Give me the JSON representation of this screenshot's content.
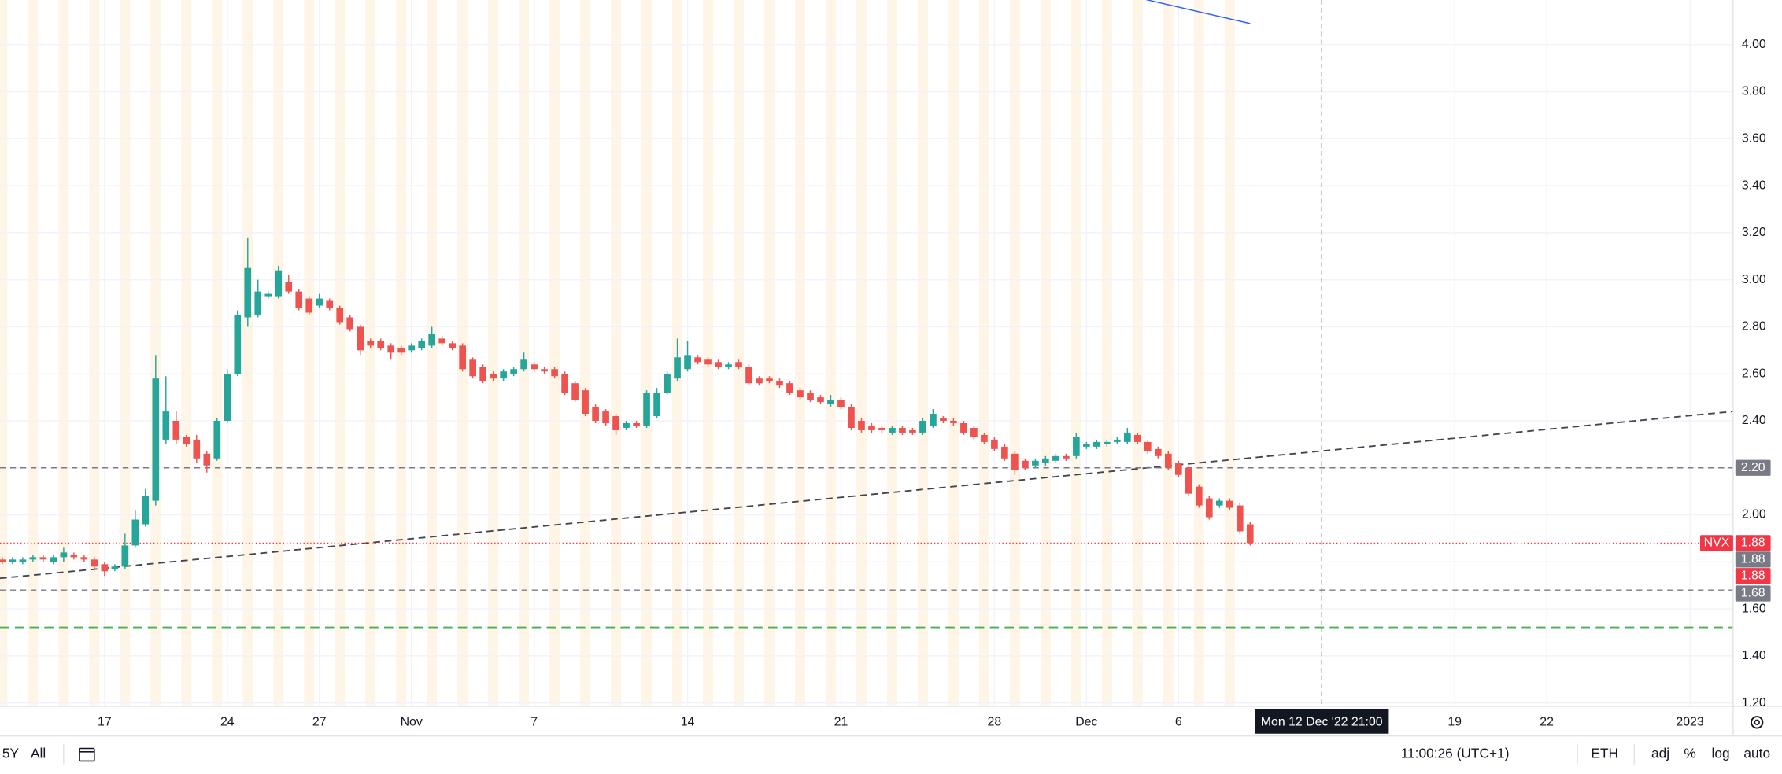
{
  "chart_data": {
    "type": "candlestick",
    "categories": [
      null,
      null,
      null,
      null,
      null,
      null,
      null,
      null,
      null,
      null,
      "17",
      null,
      null,
      null,
      null,
      null,
      null,
      null,
      null,
      null,
      null,
      null,
      "24",
      null,
      null,
      null,
      null,
      null,
      null,
      null,
      null,
      "27",
      null,
      null,
      null,
      null,
      null,
      null,
      null,
      null,
      "Nov",
      null,
      null,
      null,
      null,
      null,
      null,
      null,
      null,
      null,
      null,
      null,
      "7",
      null,
      null,
      null,
      null,
      null,
      null,
      null,
      null,
      null,
      null,
      null,
      null,
      null,
      null,
      "14",
      null,
      null,
      null,
      null,
      null,
      null,
      null,
      null,
      null,
      null,
      null,
      null,
      null,
      null,
      "21",
      null,
      null,
      null,
      null,
      null,
      null,
      null,
      null,
      null,
      null,
      null,
      null,
      null,
      null,
      "28",
      null,
      null,
      null,
      null,
      null,
      null,
      null,
      null,
      "Dec",
      null,
      null,
      null,
      null,
      null,
      null,
      null,
      null,
      "6",
      null,
      null,
      null,
      null,
      null,
      null,
      null,
      null,
      null,
      null,
      null,
      null,
      null,
      null,
      null,
      null,
      null,
      null,
      null,
      null,
      null,
      null,
      null,
      null,
      null,
      null,
      "19",
      null,
      null,
      null,
      null,
      null,
      null,
      null,
      null,
      "22",
      null,
      null,
      null,
      null,
      null,
      null,
      null,
      null,
      null,
      null,
      null,
      null,
      null,
      "2023",
      null,
      null,
      null,
      null
    ],
    "open": [
      1.81,
      1.8,
      1.8,
      1.81,
      1.82,
      1.8,
      1.82,
      1.83,
      1.82,
      1.81,
      1.79,
      1.77,
      1.78,
      1.87,
      1.96,
      2.06,
      2.32,
      2.4,
      2.33,
      2.32,
      2.26,
      2.24,
      2.4,
      2.6,
      2.84,
      2.85,
      2.93,
      2.93,
      2.99,
      2.95,
      2.92,
      2.89,
      2.91,
      2.88,
      2.84,
      2.8,
      2.74,
      2.74,
      2.72,
      2.71,
      2.7,
      2.71,
      2.72,
      2.75,
      2.73,
      2.72,
      2.66,
      2.63,
      2.6,
      2.58,
      2.6,
      2.62,
      2.64,
      2.62,
      2.62,
      2.6,
      2.56,
      2.53,
      2.46,
      2.44,
      2.42,
      2.37,
      2.39,
      2.38,
      2.42,
      2.52,
      2.58,
      2.62,
      2.67,
      2.66,
      2.65,
      2.63,
      2.65,
      2.63,
      2.58,
      2.58,
      2.57,
      2.56,
      2.53,
      2.52,
      2.5,
      2.47,
      2.49,
      2.46,
      2.4,
      2.38,
      2.37,
      2.35,
      2.37,
      2.36,
      2.35,
      2.38,
      2.41,
      2.4,
      2.39,
      2.37,
      2.34,
      2.32,
      2.29,
      2.26,
      2.23,
      2.21,
      2.22,
      2.23,
      2.25,
      2.25,
      2.29,
      2.29,
      2.3,
      2.31,
      2.31,
      2.34,
      2.31,
      2.28,
      2.26,
      2.22,
      2.2,
      2.12,
      2.07,
      2.04,
      2.06,
      2.04,
      1.96,
      null,
      null,
      null,
      null,
      null,
      null,
      null,
      null,
      null,
      null,
      null,
      null,
      null,
      null,
      null,
      null,
      null,
      null,
      null,
      null,
      null,
      null,
      null,
      null,
      null,
      null,
      null,
      null,
      null,
      null,
      null,
      null,
      null,
      null,
      null,
      null,
      null,
      null,
      null,
      null,
      null,
      null,
      null,
      null,
      null,
      null,
      null
    ],
    "high": [
      1.82,
      1.82,
      1.82,
      1.83,
      1.83,
      1.83,
      1.86,
      1.84,
      1.83,
      1.82,
      1.8,
      1.79,
      1.92,
      2.02,
      2.11,
      2.68,
      2.59,
      2.44,
      2.34,
      2.34,
      2.27,
      2.41,
      2.62,
      2.87,
      3.18,
      3.0,
      2.95,
      3.06,
      3.02,
      2.96,
      2.93,
      2.94,
      2.92,
      2.89,
      2.85,
      2.81,
      2.75,
      2.75,
      2.73,
      2.72,
      2.73,
      2.75,
      2.8,
      2.76,
      2.74,
      2.73,
      2.67,
      2.64,
      2.61,
      2.62,
      2.63,
      2.69,
      2.65,
      2.63,
      2.63,
      2.61,
      2.57,
      2.54,
      2.47,
      2.45,
      2.43,
      2.4,
      2.4,
      2.53,
      2.54,
      2.61,
      2.75,
      2.74,
      2.68,
      2.67,
      2.66,
      2.65,
      2.66,
      2.64,
      2.59,
      2.59,
      2.58,
      2.57,
      2.54,
      2.53,
      2.51,
      2.51,
      2.5,
      2.47,
      2.41,
      2.39,
      2.38,
      2.38,
      2.38,
      2.37,
      2.41,
      2.45,
      2.42,
      2.41,
      2.4,
      2.38,
      2.35,
      2.33,
      2.3,
      2.27,
      2.24,
      2.24,
      2.25,
      2.26,
      2.26,
      2.35,
      2.31,
      2.32,
      2.32,
      2.33,
      2.37,
      2.35,
      2.32,
      2.29,
      2.27,
      2.23,
      2.21,
      2.13,
      2.08,
      2.07,
      2.07,
      2.05,
      1.97,
      null,
      null,
      null,
      null,
      null,
      null,
      null,
      null,
      null,
      null,
      null,
      null,
      null,
      null,
      null,
      null,
      null,
      null,
      null,
      null,
      null,
      null,
      null,
      null,
      null,
      null,
      null,
      null,
      null,
      null,
      null,
      null,
      null,
      null,
      null,
      null,
      null,
      null,
      null,
      null,
      null,
      null,
      null,
      null,
      null,
      null,
      null
    ],
    "low": [
      1.79,
      1.79,
      1.79,
      1.8,
      1.8,
      1.79,
      1.8,
      1.81,
      1.8,
      1.77,
      1.74,
      1.76,
      1.77,
      1.86,
      1.95,
      2.04,
      2.3,
      2.3,
      2.29,
      2.22,
      2.18,
      2.23,
      2.39,
      2.59,
      2.8,
      2.84,
      2.92,
      2.92,
      2.94,
      2.87,
      2.85,
      2.88,
      2.87,
      2.81,
      2.78,
      2.68,
      2.71,
      2.7,
      2.66,
      2.68,
      2.69,
      2.7,
      2.71,
      2.72,
      2.7,
      2.61,
      2.58,
      2.56,
      2.57,
      2.57,
      2.59,
      2.61,
      2.61,
      2.6,
      2.58,
      2.51,
      2.48,
      2.42,
      2.39,
      2.38,
      2.34,
      2.36,
      2.37,
      2.37,
      2.41,
      2.51,
      2.57,
      2.61,
      2.64,
      2.63,
      2.62,
      2.62,
      2.62,
      2.55,
      2.55,
      2.56,
      2.54,
      2.51,
      2.49,
      2.48,
      2.47,
      2.46,
      2.45,
      2.36,
      2.35,
      2.35,
      2.35,
      2.34,
      2.34,
      2.34,
      2.34,
      2.37,
      2.39,
      2.38,
      2.34,
      2.32,
      2.3,
      2.27,
      2.23,
      2.17,
      2.19,
      2.2,
      2.21,
      2.22,
      2.23,
      2.24,
      2.28,
      2.28,
      2.29,
      2.3,
      2.3,
      2.3,
      2.26,
      2.24,
      2.19,
      2.16,
      2.08,
      2.03,
      1.98,
      2.03,
      2.02,
      1.92,
      1.87,
      null,
      null,
      null,
      null,
      null,
      null,
      null,
      null,
      null,
      null,
      null,
      null,
      null,
      null,
      null,
      null,
      null,
      null,
      null,
      null,
      null,
      null,
      null,
      null,
      null,
      null,
      null,
      null,
      null,
      null,
      null,
      null,
      null,
      null,
      null,
      null,
      null,
      null,
      null,
      null,
      null,
      null,
      null,
      null,
      null,
      null,
      null
    ],
    "close": [
      1.8,
      1.81,
      1.81,
      1.82,
      1.81,
      1.82,
      1.84,
      1.82,
      1.81,
      1.78,
      1.76,
      1.78,
      1.87,
      1.98,
      2.08,
      2.58,
      2.44,
      2.32,
      2.3,
      2.24,
      2.21,
      2.4,
      2.6,
      2.85,
      3.05,
      2.95,
      2.94,
      3.04,
      2.95,
      2.88,
      2.86,
      2.92,
      2.88,
      2.82,
      2.79,
      2.7,
      2.72,
      2.71,
      2.69,
      2.69,
      2.72,
      2.74,
      2.77,
      2.73,
      2.71,
      2.62,
      2.59,
      2.57,
      2.58,
      2.61,
      2.62,
      2.66,
      2.62,
      2.61,
      2.59,
      2.52,
      2.49,
      2.43,
      2.4,
      2.39,
      2.36,
      2.39,
      2.38,
      2.52,
      2.52,
      2.6,
      2.67,
      2.68,
      2.65,
      2.64,
      2.63,
      2.64,
      2.63,
      2.56,
      2.56,
      2.57,
      2.55,
      2.52,
      2.5,
      2.49,
      2.48,
      2.49,
      2.46,
      2.37,
      2.36,
      2.36,
      2.36,
      2.37,
      2.35,
      2.35,
      2.4,
      2.43,
      2.4,
      2.39,
      2.35,
      2.33,
      2.31,
      2.28,
      2.24,
      2.19,
      2.2,
      2.23,
      2.24,
      2.25,
      2.24,
      2.33,
      2.3,
      2.31,
      2.31,
      2.32,
      2.35,
      2.31,
      2.27,
      2.25,
      2.2,
      2.17,
      2.09,
      2.04,
      1.99,
      2.06,
      2.03,
      1.93,
      1.88,
      null,
      null,
      null,
      null,
      null,
      null,
      null,
      null,
      null,
      null,
      null,
      null,
      null,
      null,
      null,
      null,
      null,
      null,
      null,
      null,
      null,
      null,
      null,
      null,
      null,
      null,
      null,
      null,
      null,
      null,
      null,
      null,
      null,
      null,
      null,
      null,
      null,
      null,
      null,
      null,
      null,
      null,
      null,
      null,
      null,
      null,
      null
    ],
    "up_color": "#26a69a",
    "down_color": "#ef5350",
    "ylim": [
      1.19,
      4.19
    ],
    "yticks": [
      {
        "value": 1.2,
        "label": "1.20"
      },
      {
        "value": 1.4,
        "label": "1.40"
      },
      {
        "value": 1.6,
        "label": "1.60"
      },
      {
        "value": 1.8,
        "label": "1.80"
      },
      {
        "value": 2.0,
        "label": "2.00"
      },
      {
        "value": 2.2,
        "label": "2.20"
      },
      {
        "value": 2.4,
        "label": "2.40"
      },
      {
        "value": 2.6,
        "label": "2.60"
      },
      {
        "value": 2.8,
        "label": "2.80"
      },
      {
        "value": 3.0,
        "label": "3.00"
      },
      {
        "value": 3.2,
        "label": "3.20"
      },
      {
        "value": 3.4,
        "label": "3.40"
      },
      {
        "value": 3.6,
        "label": "3.60"
      },
      {
        "value": 3.8,
        "label": "3.80"
      },
      {
        "value": 4.0,
        "label": "4.00"
      }
    ],
    "grid": true,
    "levels": [
      {
        "value": 2.2,
        "label": "2.20",
        "color": "#787b86"
      },
      {
        "value": 1.68,
        "label": "1.68",
        "color": "#787b86"
      },
      {
        "value": 1.52,
        "color": "#4caf50"
      }
    ],
    "trend_line": {
      "start": 1.73,
      "end": 2.44,
      "color": "#434651"
    },
    "blue_line": {
      "start": 4.2,
      "end": 4.09,
      "color": "#2962ff"
    },
    "last_price": {
      "symbol": "NVX",
      "value": 1.88,
      "label": "1.88",
      "color": "#f23645"
    },
    "extra_price_labels": [
      {
        "label": "1.88",
        "color": "#787b86"
      },
      {
        "label": "1.88",
        "color": "#f23645"
      }
    ],
    "crosshair_label": "Mon 12 Dec '22  21:00"
  },
  "toolbar": {
    "ranges": [
      "5Y",
      "All"
    ],
    "clock": "11:00:26 (UTC+1)",
    "session": "ETH",
    "options": [
      "adj",
      "%",
      "log",
      "auto"
    ]
  }
}
